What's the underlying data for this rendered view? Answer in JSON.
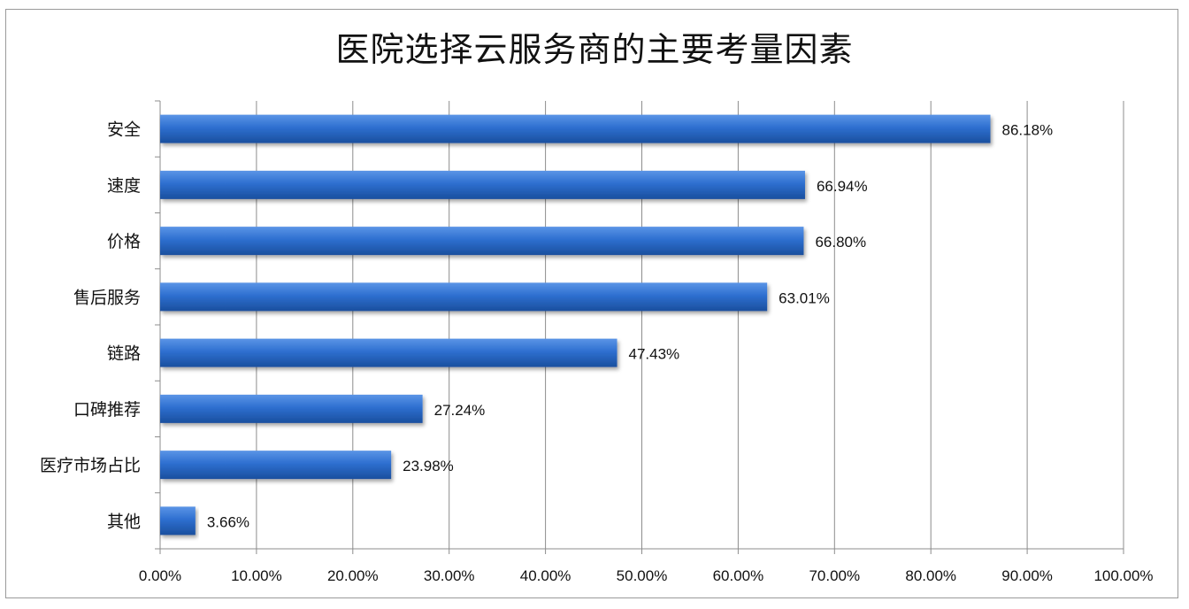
{
  "chart_data": {
    "type": "bar",
    "orientation": "horizontal",
    "title": "医院选择云服务商的主要考量因素",
    "xlabel": "",
    "ylabel": "",
    "categories": [
      "安全",
      "速度",
      "价格",
      "售后服务",
      "链路",
      "口碑推荐",
      "医疗市场占比",
      "其他"
    ],
    "values": [
      86.18,
      66.94,
      66.8,
      63.01,
      47.43,
      27.24,
      23.98,
      3.66
    ],
    "value_labels": [
      "86.18%",
      "66.94%",
      "66.80%",
      "63.01%",
      "47.43%",
      "27.24%",
      "23.98%",
      "3.66%"
    ],
    "xlim": [
      0,
      100
    ],
    "x_ticks": [
      "0.00%",
      "10.00%",
      "20.00%",
      "30.00%",
      "40.00%",
      "50.00%",
      "60.00%",
      "70.00%",
      "80.00%",
      "90.00%",
      "100.00%"
    ],
    "grid": "vertical",
    "legend": "none",
    "bar_color": "#2e6fd0",
    "bar_color_dark": "#1a4f9e",
    "bar_color_light": "#5b95e6"
  }
}
